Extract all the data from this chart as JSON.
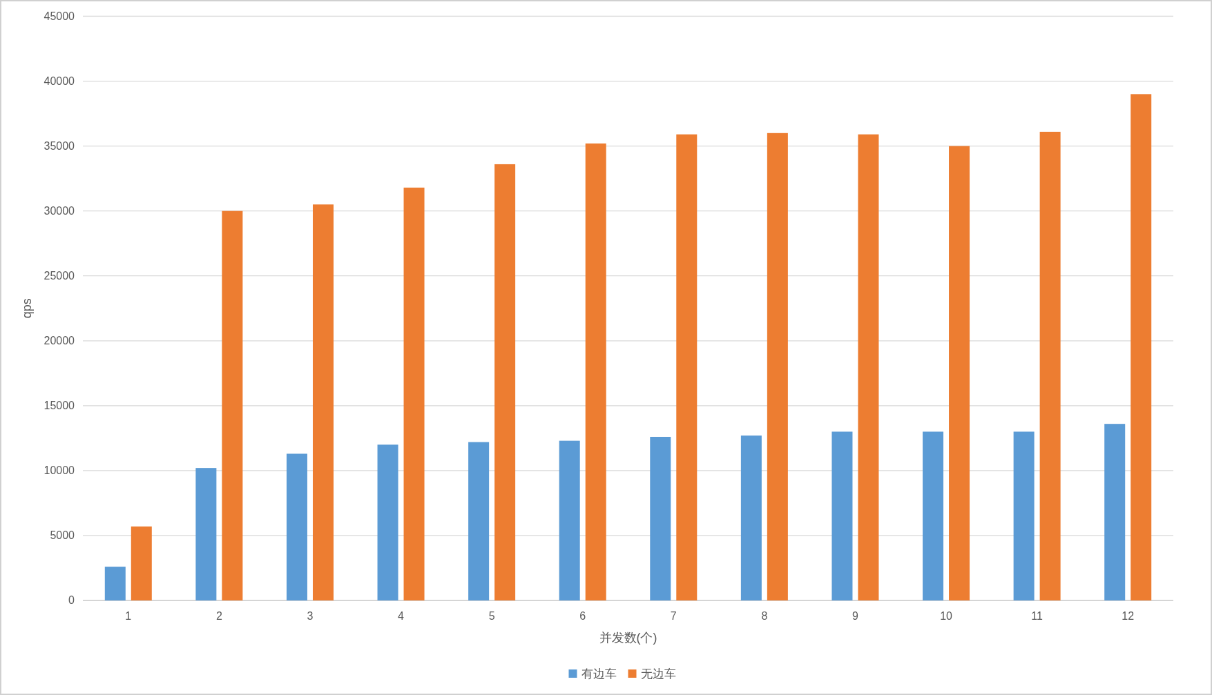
{
  "chart_data": {
    "type": "bar",
    "xlabel": "并发数(个)",
    "ylabel": "qps",
    "categories": [
      "1",
      "2",
      "3",
      "4",
      "5",
      "6",
      "7",
      "8",
      "9",
      "10",
      "11",
      "12"
    ],
    "series": [
      {
        "name": "有边车",
        "color": "#5b9bd5",
        "values": [
          2600,
          10200,
          11300,
          12000,
          12200,
          12300,
          12600,
          12700,
          13000,
          13000,
          13000,
          13600
        ]
      },
      {
        "name": "无边车",
        "color": "#ed7d31",
        "values": [
          5700,
          30000,
          30500,
          31800,
          33600,
          35200,
          35900,
          36000,
          35900,
          35000,
          36100,
          39000
        ]
      }
    ],
    "ylim": [
      0,
      45000
    ],
    "yticks": [
      0,
      5000,
      10000,
      15000,
      20000,
      25000,
      30000,
      35000,
      40000,
      45000
    ],
    "grid": "y",
    "legend": "bottom"
  }
}
